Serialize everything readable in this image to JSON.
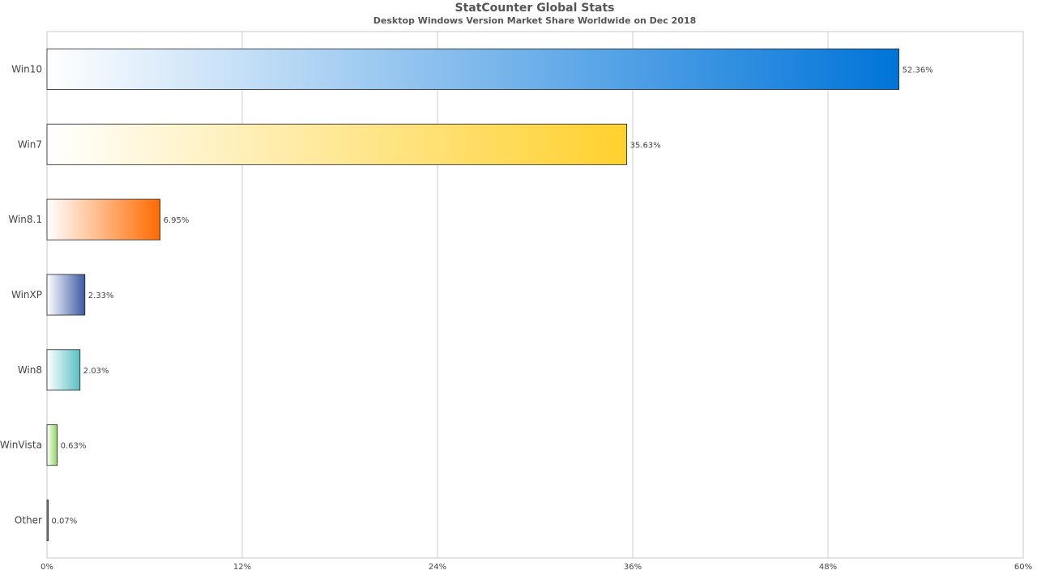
{
  "chart_data": {
    "type": "bar",
    "orientation": "horizontal",
    "title": "StatCounter Global Stats",
    "subtitle": "Desktop Windows Version Market Share Worldwide on Dec 2018",
    "categories": [
      "Win10",
      "Win7",
      "Win8.1",
      "WinXP",
      "Win8",
      "WinVista",
      "Other"
    ],
    "values": [
      52.36,
      35.63,
      6.95,
      2.33,
      2.03,
      0.63,
      0.07
    ],
    "value_labels": [
      "52.36%",
      "35.63%",
      "6.95%",
      "2.33%",
      "2.03%",
      "0.63%",
      "0.07%"
    ],
    "colors": [
      "#0074d9",
      "#ffd12e",
      "#ff6a00",
      "#3c5aa3",
      "#58c0c4",
      "#8fd460",
      "#333333"
    ],
    "xlim": [
      0,
      60
    ],
    "xticks": [
      0,
      12,
      24,
      36,
      48,
      60
    ],
    "xtick_labels": [
      "0%",
      "12%",
      "24%",
      "36%",
      "48%",
      "60%"
    ],
    "grid": true,
    "legend": "none"
  }
}
